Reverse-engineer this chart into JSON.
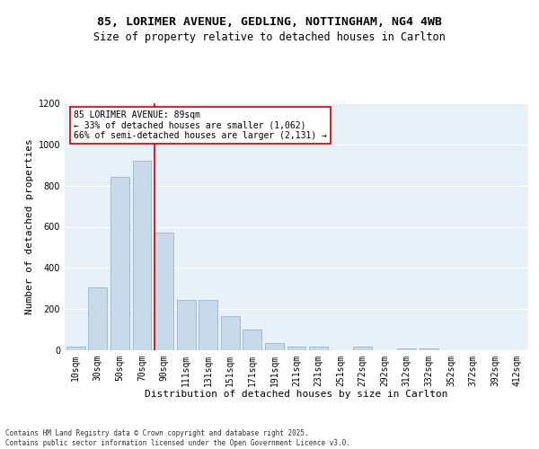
{
  "title1": "85, LORIMER AVENUE, GEDLING, NOTTINGHAM, NG4 4WB",
  "title2": "Size of property relative to detached houses in Carlton",
  "xlabel": "Distribution of detached houses by size in Carlton",
  "ylabel": "Number of detached properties",
  "footer1": "Contains HM Land Registry data © Crown copyright and database right 2025.",
  "footer2": "Contains public sector information licensed under the Open Government Licence v3.0.",
  "bin_labels": [
    "10sqm",
    "30sqm",
    "50sqm",
    "70sqm",
    "90sqm",
    "111sqm",
    "131sqm",
    "151sqm",
    "171sqm",
    "191sqm",
    "211sqm",
    "231sqm",
    "251sqm",
    "272sqm",
    "292sqm",
    "312sqm",
    "332sqm",
    "352sqm",
    "372sqm",
    "392sqm",
    "412sqm"
  ],
  "bar_values": [
    18,
    305,
    840,
    920,
    570,
    245,
    245,
    165,
    100,
    35,
    18,
    18,
    0,
    18,
    0,
    10,
    10,
    0,
    0,
    0,
    0
  ],
  "bar_color": "#c8d9ea",
  "bar_edgecolor": "#9ab4cc",
  "vline_color": "#cc0000",
  "annotation_text": "85 LORIMER AVENUE: 89sqm\n← 33% of detached houses are smaller (1,062)\n66% of semi-detached houses are larger (2,131) →",
  "annotation_box_color": "#cc0000",
  "ylim": [
    0,
    1200
  ],
  "yticks": [
    0,
    200,
    400,
    600,
    800,
    1000,
    1200
  ],
  "background_color": "#e8f0f8",
  "grid_color": "#ffffff",
  "title1_fontsize": 9.5,
  "title2_fontsize": 8.5,
  "xlabel_fontsize": 8,
  "ylabel_fontsize": 8,
  "tick_fontsize": 7,
  "footer_fontsize": 5.5,
  "annot_fontsize": 7
}
